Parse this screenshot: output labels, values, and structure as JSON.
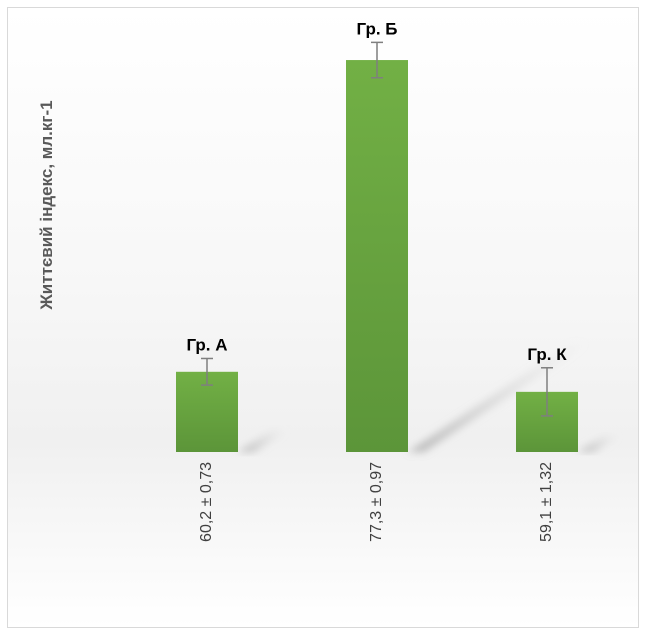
{
  "chart_data": {
    "type": "bar",
    "categories": [
      "60,2 ± 0,73",
      "77,3 ± 0,97",
      "59,1 ± 1,32"
    ],
    "values": [
      60.2,
      77.3,
      59.1
    ],
    "errors": [
      0.73,
      0.97,
      1.32
    ],
    "data_labels": [
      "Гр. А",
      "Гр. Б",
      "Гр. К"
    ],
    "ylabel": "Життєвий індекс, мл.кг-1",
    "ylim": [
      55.8,
      78.4
    ],
    "grid": false,
    "bar_color": "#70ad47",
    "bar_color_dark": "#5b9a3a",
    "error_bar_color": "#7f7f7f"
  }
}
